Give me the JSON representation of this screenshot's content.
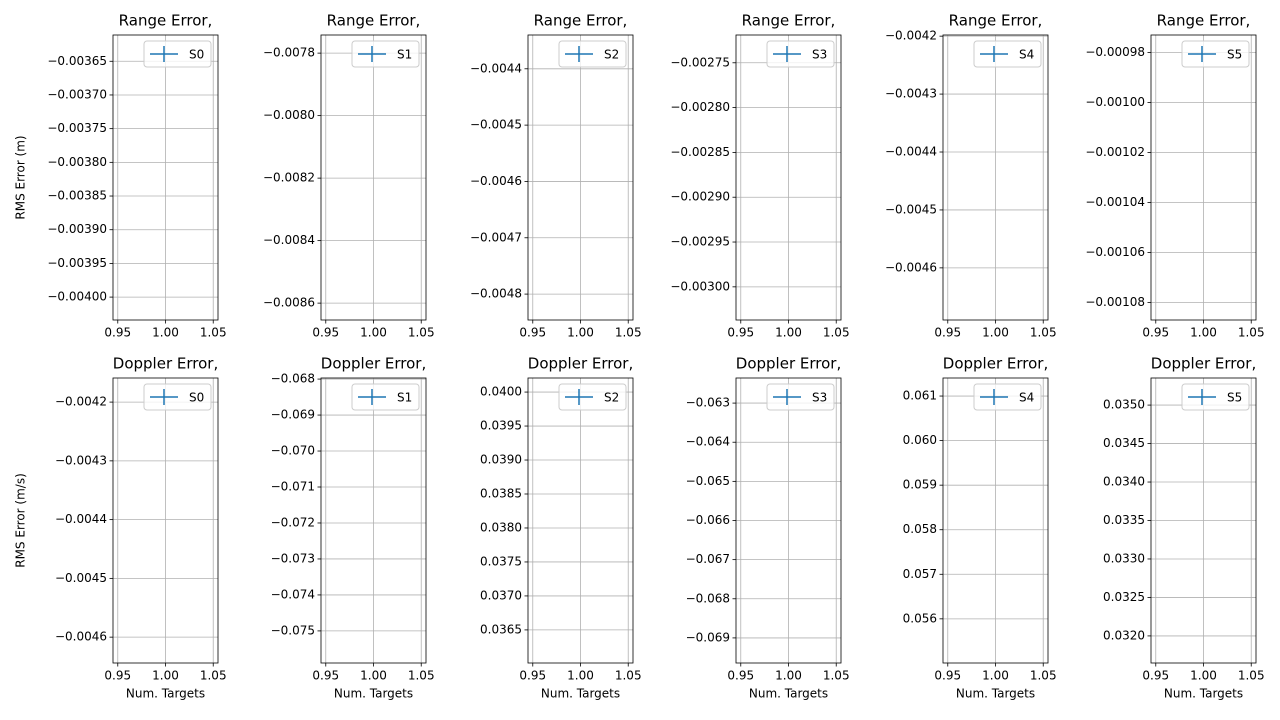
{
  "chart_data": [
    {
      "type": "line",
      "title": "Range Error,",
      "ylabel": "RMS Error (m)",
      "x": [
        1
      ],
      "series": [
        {
          "name": "S0",
          "color": "#1f77b4",
          "values": [
            null
          ]
        }
      ],
      "xlim": [
        0.945,
        1.055
      ],
      "xticks": [
        0.95,
        {
          "value": 1,
          "label": "1.00"
        },
        1.05
      ],
      "ylim": [
        -0.004034,
        -0.003611
      ],
      "yticks": [
        {
          "value": -0.00365,
          "label": "−0.00365"
        },
        {
          "value": -0.0037,
          "label": "−0.00370"
        },
        {
          "value": -0.00375,
          "label": "−0.00375"
        },
        {
          "value": -0.0038,
          "label": "−0.00380"
        },
        {
          "value": -0.00385,
          "label": "−0.00385"
        },
        {
          "value": -0.0039,
          "label": "−0.00390"
        },
        {
          "value": -0.00395,
          "label": "−0.00395"
        },
        {
          "value": -0.004,
          "label": "−0.00400"
        }
      ],
      "grid": true,
      "legend": "upper right"
    },
    {
      "type": "line",
      "title": "Range Error,",
      "x": [
        1
      ],
      "series": [
        {
          "name": "S1",
          "color": "#1f77b4",
          "values": [
            null
          ]
        }
      ],
      "xlim": [
        0.945,
        1.055
      ],
      "xticks": [
        0.95,
        {
          "value": 1,
          "label": "1.00"
        },
        1.05
      ],
      "ylim": [
        -0.008654,
        -0.007742
      ],
      "yticks": [
        {
          "value": -0.0078,
          "label": "−0.0078"
        },
        {
          "value": -0.008,
          "label": "−0.0080"
        },
        {
          "value": -0.0082,
          "label": "−0.0082"
        },
        {
          "value": -0.0084,
          "label": "−0.0084"
        },
        {
          "value": -0.0086,
          "label": "−0.0086"
        }
      ],
      "grid": true,
      "legend": "upper right"
    },
    {
      "type": "line",
      "title": "Range Error,",
      "x": [
        1
      ],
      "series": [
        {
          "name": "S2",
          "color": "#1f77b4",
          "values": [
            null
          ]
        }
      ],
      "xlim": [
        0.945,
        1.055
      ],
      "xticks": [
        0.95,
        {
          "value": 1,
          "label": "1.00"
        },
        1.05
      ],
      "ylim": [
        -0.004846,
        -0.00434
      ],
      "yticks": [
        {
          "value": -0.0044,
          "label": "−0.0044"
        },
        {
          "value": -0.0045,
          "label": "−0.0045"
        },
        {
          "value": -0.0046,
          "label": "−0.0046"
        },
        {
          "value": -0.0047,
          "label": "−0.0047"
        },
        {
          "value": -0.0048,
          "label": "−0.0048"
        }
      ],
      "grid": true,
      "legend": "upper right"
    },
    {
      "type": "line",
      "title": "Range Error,",
      "x": [
        1
      ],
      "series": [
        {
          "name": "S3",
          "color": "#1f77b4",
          "values": [
            null
          ]
        }
      ],
      "xlim": [
        0.945,
        1.055
      ],
      "xticks": [
        0.95,
        {
          "value": 1,
          "label": "1.00"
        },
        1.05
      ],
      "ylim": [
        -0.003037,
        -0.002719
      ],
      "yticks": [
        {
          "value": -0.00275,
          "label": "−0.00275"
        },
        {
          "value": -0.0028,
          "label": "−0.00280"
        },
        {
          "value": -0.00285,
          "label": "−0.00285"
        },
        {
          "value": -0.0029,
          "label": "−0.00290"
        },
        {
          "value": -0.00295,
          "label": "−0.00295"
        },
        {
          "value": -0.003,
          "label": "−0.00300"
        }
      ],
      "grid": true,
      "legend": "upper right"
    },
    {
      "type": "line",
      "title": "Range Error,",
      "x": [
        1
      ],
      "series": [
        {
          "name": "S4",
          "color": "#1f77b4",
          "values": [
            null
          ]
        }
      ],
      "xlim": [
        0.945,
        1.055
      ],
      "xticks": [
        0.95,
        {
          "value": 1,
          "label": "1.00"
        },
        1.05
      ],
      "ylim": [
        -0.00469,
        -0.004198
      ],
      "yticks": [
        {
          "value": -0.0042,
          "label": "−0.0042"
        },
        {
          "value": -0.0043,
          "label": "−0.0043"
        },
        {
          "value": -0.0044,
          "label": "−0.0044"
        },
        {
          "value": -0.0045,
          "label": "−0.0045"
        },
        {
          "value": -0.0046,
          "label": "−0.0046"
        }
      ],
      "grid": true,
      "legend": "upper right"
    },
    {
      "type": "line",
      "title": "Range Error,",
      "x": [
        1
      ],
      "series": [
        {
          "name": "S5",
          "color": "#1f77b4",
          "values": [
            null
          ]
        }
      ],
      "xlim": [
        0.945,
        1.055
      ],
      "xticks": [
        0.95,
        {
          "value": 1,
          "label": "1.00"
        },
        1.05
      ],
      "ylim": [
        -0.001087,
        -0.000973
      ],
      "yticks": [
        {
          "value": -0.00098,
          "label": "−0.00098"
        },
        {
          "value": -0.001,
          "label": "−0.00100"
        },
        {
          "value": -0.00102,
          "label": "−0.00102"
        },
        {
          "value": -0.00104,
          "label": "−0.00104"
        },
        {
          "value": -0.00106,
          "label": "−0.00106"
        },
        {
          "value": -0.00108,
          "label": "−0.00108"
        }
      ],
      "grid": true,
      "legend": "upper right"
    },
    {
      "type": "line",
      "title": "Doppler Error,",
      "ylabel": "RMS Error (m/s)",
      "xlabel": "Num. Targets",
      "x": [
        1
      ],
      "series": [
        {
          "name": "S0",
          "color": "#1f77b4",
          "values": [
            null
          ]
        }
      ],
      "xlim": [
        0.945,
        1.055
      ],
      "xticks": [
        0.95,
        {
          "value": 1,
          "label": "1.00"
        },
        1.05
      ],
      "ylim": [
        -0.004644,
        -0.004159
      ],
      "yticks": [
        {
          "value": -0.0042,
          "label": "−0.0042"
        },
        {
          "value": -0.0043,
          "label": "−0.0043"
        },
        {
          "value": -0.0044,
          "label": "−0.0044"
        },
        {
          "value": -0.0045,
          "label": "−0.0045"
        },
        {
          "value": -0.0046,
          "label": "−0.0046"
        }
      ],
      "grid": true,
      "legend": "upper right"
    },
    {
      "type": "line",
      "title": "Doppler Error,",
      "xlabel": "Num. Targets",
      "x": [
        1
      ],
      "series": [
        {
          "name": "S1",
          "color": "#1f77b4",
          "values": [
            null
          ]
        }
      ],
      "xlim": [
        0.945,
        1.055
      ],
      "xticks": [
        0.95,
        {
          "value": 1,
          "label": "1.00"
        },
        1.05
      ],
      "ylim": [
        -0.075892,
        -0.06797
      ],
      "yticks": [
        {
          "value": -0.068,
          "label": "−0.068"
        },
        {
          "value": -0.069,
          "label": "−0.069"
        },
        {
          "value": -0.07,
          "label": "−0.070"
        },
        {
          "value": -0.071,
          "label": "−0.071"
        },
        {
          "value": -0.072,
          "label": "−0.072"
        },
        {
          "value": -0.073,
          "label": "−0.073"
        },
        {
          "value": -0.074,
          "label": "−0.074"
        },
        {
          "value": -0.075,
          "label": "−0.075"
        }
      ],
      "grid": true,
      "legend": "upper right"
    },
    {
      "type": "line",
      "title": "Doppler Error,",
      "xlabel": "Num. Targets",
      "x": [
        1
      ],
      "series": [
        {
          "name": "S2",
          "color": "#1f77b4",
          "values": [
            null
          ]
        }
      ],
      "xlim": [
        0.945,
        1.055
      ],
      "xticks": [
        0.95,
        {
          "value": 1,
          "label": "1.00"
        },
        1.05
      ],
      "ylim": [
        0.036013,
        0.040207
      ],
      "yticks": [
        {
          "value": 0.04,
          "label": "0.0400"
        },
        0.0395,
        {
          "value": 0.039,
          "label": "0.0390"
        },
        0.0385,
        {
          "value": 0.038,
          "label": "0.0380"
        },
        0.0375,
        {
          "value": 0.037,
          "label": "0.0370"
        },
        0.0365
      ],
      "grid": true,
      "legend": "upper right"
    },
    {
      "type": "line",
      "title": "Doppler Error,",
      "xlabel": "Num. Targets",
      "x": [
        1
      ],
      "series": [
        {
          "name": "S3",
          "color": "#1f77b4",
          "values": [
            null
          ]
        }
      ],
      "xlim": [
        0.945,
        1.055
      ],
      "xticks": [
        0.95,
        {
          "value": 1,
          "label": "1.00"
        },
        1.05
      ],
      "ylim": [
        -0.069641,
        -0.062359
      ],
      "yticks": [
        {
          "value": -0.063,
          "label": "−0.063"
        },
        {
          "value": -0.064,
          "label": "−0.064"
        },
        {
          "value": -0.065,
          "label": "−0.065"
        },
        {
          "value": -0.066,
          "label": "−0.066"
        },
        {
          "value": -0.067,
          "label": "−0.067"
        },
        {
          "value": -0.068,
          "label": "−0.068"
        },
        {
          "value": -0.069,
          "label": "−0.069"
        }
      ],
      "grid": true,
      "legend": "upper right"
    },
    {
      "type": "line",
      "title": "Doppler Error,",
      "xlabel": "Num. Targets",
      "x": [
        1
      ],
      "series": [
        {
          "name": "S4",
          "color": "#1f77b4",
          "values": [
            null
          ]
        }
      ],
      "xlim": [
        0.945,
        1.055
      ],
      "xticks": [
        0.95,
        {
          "value": 1,
          "label": "1.00"
        },
        1.05
      ],
      "ylim": [
        0.055009,
        0.061405
      ],
      "yticks": [
        0.061,
        {
          "value": 0.06,
          "label": "0.060"
        },
        0.059,
        0.058,
        0.057,
        0.056
      ],
      "grid": true,
      "legend": "upper right"
    },
    {
      "type": "line",
      "title": "Doppler Error,",
      "xlabel": "Num. Targets",
      "x": [
        1
      ],
      "series": [
        {
          "name": "S5",
          "color": "#1f77b4",
          "values": [
            null
          ]
        }
      ],
      "xlim": [
        0.945,
        1.055
      ],
      "xticks": [
        0.95,
        {
          "value": 1,
          "label": "1.00"
        },
        1.05
      ],
      "ylim": [
        0.031648,
        0.035352
      ],
      "yticks": [
        {
          "value": 0.035,
          "label": "0.0350"
        },
        0.0345,
        {
          "value": 0.034,
          "label": "0.0340"
        },
        0.0335,
        {
          "value": 0.033,
          "label": "0.0330"
        },
        0.0325,
        {
          "value": 0.032,
          "label": "0.0320"
        }
      ],
      "grid": true,
      "legend": "upper right"
    }
  ]
}
